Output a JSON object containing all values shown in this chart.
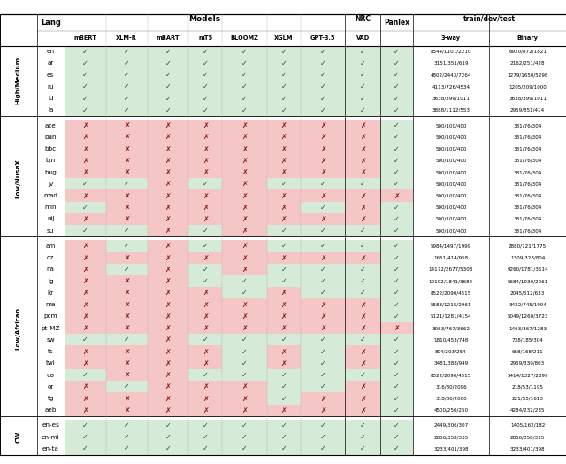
{
  "row_groups": [
    {
      "label": "High/Medium",
      "rows": [
        [
          "en",
          "c",
          "c",
          "c",
          "c",
          "c",
          "c",
          "c",
          "c",
          "c",
          "8544/1101/2210",
          "6920/872/1821"
        ],
        [
          "ar",
          "c",
          "c",
          "c",
          "c",
          "c",
          "c",
          "c",
          "c",
          "c",
          "3151/351/619",
          "2162/251/428"
        ],
        [
          "es",
          "c",
          "c",
          "c",
          "c",
          "c",
          "c",
          "c",
          "c",
          "c",
          "4802/2443/7264",
          "3279/1650/5298"
        ],
        [
          "ru",
          "c",
          "c",
          "c",
          "c",
          "c",
          "c",
          "c",
          "c",
          "c",
          "4113/726/4534",
          "1205/209/1000"
        ],
        [
          "id",
          "c",
          "c",
          "c",
          "c",
          "c",
          "c",
          "c",
          "c",
          "c",
          "3638/399/1011",
          "3638/399/1011"
        ],
        [
          "ja",
          "c",
          "c",
          "c",
          "c",
          "c",
          "c",
          "c",
          "c",
          "c",
          "3888/1112/553",
          "2959/851/414"
        ]
      ]
    },
    {
      "label": "Low/NusaX",
      "rows": [
        [
          "ace",
          "x",
          "x",
          "x",
          "x",
          "x",
          "x",
          "x",
          "x",
          "c",
          "500/100/400",
          "381/76/304"
        ],
        [
          "ban",
          "x",
          "x",
          "x",
          "x",
          "x",
          "x",
          "x",
          "x",
          "c",
          "500/100/400",
          "381/76/304"
        ],
        [
          "bbc",
          "x",
          "x",
          "x",
          "x",
          "x",
          "x",
          "x",
          "x",
          "c",
          "500/100/400",
          "381/76/304"
        ],
        [
          "bjn",
          "x",
          "x",
          "x",
          "x",
          "x",
          "x",
          "x",
          "x",
          "c",
          "500/100/400",
          "381/76/304"
        ],
        [
          "bug",
          "x",
          "x",
          "x",
          "x",
          "x",
          "x",
          "x",
          "x",
          "c",
          "500/100/400",
          "381/76/304"
        ],
        [
          "jv",
          "c",
          "c",
          "x",
          "c",
          "x",
          "c",
          "c",
          "c",
          "c",
          "500/100/400",
          "381/76/304"
        ],
        [
          "mad",
          "x",
          "x",
          "x",
          "x",
          "x",
          "x",
          "x",
          "x",
          "x",
          "500/100/400",
          "381/76/304"
        ],
        [
          "min",
          "c",
          "x",
          "x",
          "x",
          "x",
          "x",
          "c",
          "x",
          "c",
          "500/100/400",
          "381/76/304"
        ],
        [
          "nij",
          "x",
          "x",
          "x",
          "x",
          "x",
          "x",
          "x",
          "x",
          "c",
          "500/100/400",
          "381/76/304"
        ],
        [
          "su",
          "c",
          "c",
          "x",
          "c",
          "x",
          "c",
          "c",
          "c",
          "c",
          "500/100/400",
          "381/76/304"
        ]
      ]
    },
    {
      "label": "Low/African",
      "rows": [
        [
          "am",
          "x",
          "c",
          "x",
          "c",
          "x",
          "c",
          "c",
          "c",
          "c",
          "5984/1497/1999",
          "2880/721/1775"
        ],
        [
          "dz",
          "x",
          "x",
          "x",
          "x",
          "x",
          "x",
          "x",
          "x",
          "c",
          "1651/414/958",
          "1309/328/804"
        ],
        [
          "ha",
          "x",
          "c",
          "x",
          "c",
          "x",
          "c",
          "c",
          "c",
          "c",
          "14172/2677/5303",
          "9260/1781/3514"
        ],
        [
          "ig",
          "x",
          "x",
          "x",
          "c",
          "c",
          "c",
          "c",
          "c",
          "c",
          "10192/1841/3682",
          "5684/1030/2061"
        ],
        [
          "kr",
          "x",
          "x",
          "x",
          "x",
          "c",
          "x",
          "c",
          "c",
          "c",
          "8522/2090/4515",
          "2045/512/633"
        ],
        [
          "ma",
          "x",
          "x",
          "x",
          "x",
          "x",
          "x",
          "x",
          "x",
          "c",
          "5583/1215/2961",
          "3422/745/1994"
        ],
        [
          "pcm",
          "x",
          "x",
          "x",
          "x",
          "x",
          "x",
          "x",
          "x",
          "c",
          "5121/1281/4154",
          "5049/1260/3723"
        ],
        [
          "pt-MZ",
          "x",
          "x",
          "x",
          "x",
          "x",
          "x",
          "x",
          "x",
          "x",
          "3063/767/3662",
          "1463/367/1283"
        ],
        [
          "sw",
          "c",
          "c",
          "x",
          "c",
          "c",
          "c",
          "c",
          "c",
          "c",
          "1810/453/748",
          "738/185/304"
        ],
        [
          "ts",
          "x",
          "x",
          "x",
          "x",
          "c",
          "x",
          "c",
          "x",
          "c",
          "804/203/254",
          "668/168/211"
        ],
        [
          "twi",
          "x",
          "x",
          "x",
          "x",
          "c",
          "x",
          "c",
          "x",
          "c",
          "3481/388/949",
          "2959/330/803"
        ],
        [
          "uo",
          "c",
          "x",
          "x",
          "c",
          "c",
          "c",
          "c",
          "c",
          "c",
          "8522/2090/4515",
          "5414/1327/2899"
        ],
        [
          "or",
          "x",
          "c",
          "x",
          "x",
          "x",
          "c",
          "c",
          "x",
          "c",
          "316/80/2096",
          "218/53/1195"
        ],
        [
          "tg",
          "x",
          "x",
          "x",
          "x",
          "x",
          "c",
          "x",
          "x",
          "c",
          "318/80/2000",
          "221/55/1613"
        ],
        [
          "aeb",
          "x",
          "x",
          "x",
          "x",
          "x",
          "x",
          "x",
          "x",
          "c",
          "4500/250/250",
          "4284/232/235"
        ]
      ]
    },
    {
      "label": "CW",
      "rows": [
        [
          "en-es",
          "c",
          "c",
          "c",
          "c",
          "c",
          "c",
          "c",
          "c",
          "c",
          "2449/306/307",
          "1405/162/182"
        ],
        [
          "en-ml",
          "c",
          "c",
          "c",
          "c",
          "c",
          "c",
          "c",
          "c",
          "c",
          "2856/358/335",
          "2856/358/335"
        ],
        [
          "en-ta",
          "c",
          "c",
          "c",
          "c",
          "c",
          "c",
          "c",
          "c",
          "c",
          "3233/401/398",
          "3233/401/398"
        ]
      ]
    }
  ],
  "green_bg": "#d6ead8",
  "red_bg": "#f5c6c6",
  "check_color": "#2a5c2a",
  "cross_color": "#8b1010",
  "line_color_major": "#444444",
  "line_color_minor": "#aaaaaa"
}
